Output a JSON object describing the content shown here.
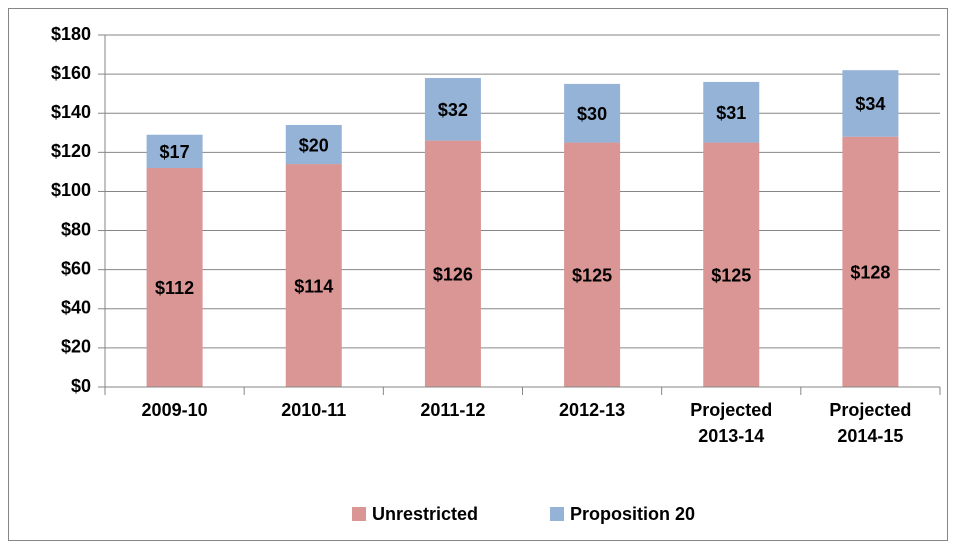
{
  "chart_data": {
    "type": "stacked_bar",
    "categories": [
      "2009-10",
      "2010-11",
      "2011-12",
      "2012-13",
      "Projected 2013-14",
      "Projected 2014-15"
    ],
    "series": [
      {
        "name": "Unrestricted",
        "color": "#d99694",
        "values": [
          112,
          114,
          126,
          125,
          125,
          128
        ],
        "value_labels": [
          "$112",
          "$114",
          "$126",
          "$125",
          "$125",
          "$128"
        ]
      },
      {
        "name": "Proposition 20",
        "color": "#95b3d7",
        "values": [
          17,
          20,
          32,
          30,
          31,
          34
        ],
        "value_labels": [
          "$17",
          "$20",
          "$32",
          "$30",
          "$31",
          "$34"
        ]
      }
    ],
    "ylim": [
      0,
      180
    ],
    "yticks": [
      {
        "value": 0,
        "label": "$0"
      },
      {
        "value": 20,
        "label": "$20"
      },
      {
        "value": 40,
        "label": "$40"
      },
      {
        "value": 60,
        "label": "$60"
      },
      {
        "value": 80,
        "label": "$80"
      },
      {
        "value": 100,
        "label": "$100"
      },
      {
        "value": 120,
        "label": "$120"
      },
      {
        "value": 140,
        "label": "$140"
      },
      {
        "value": 160,
        "label": "$160"
      },
      {
        "value": 180,
        "label": "$180"
      }
    ],
    "grid": true,
    "legend": "bottom"
  }
}
